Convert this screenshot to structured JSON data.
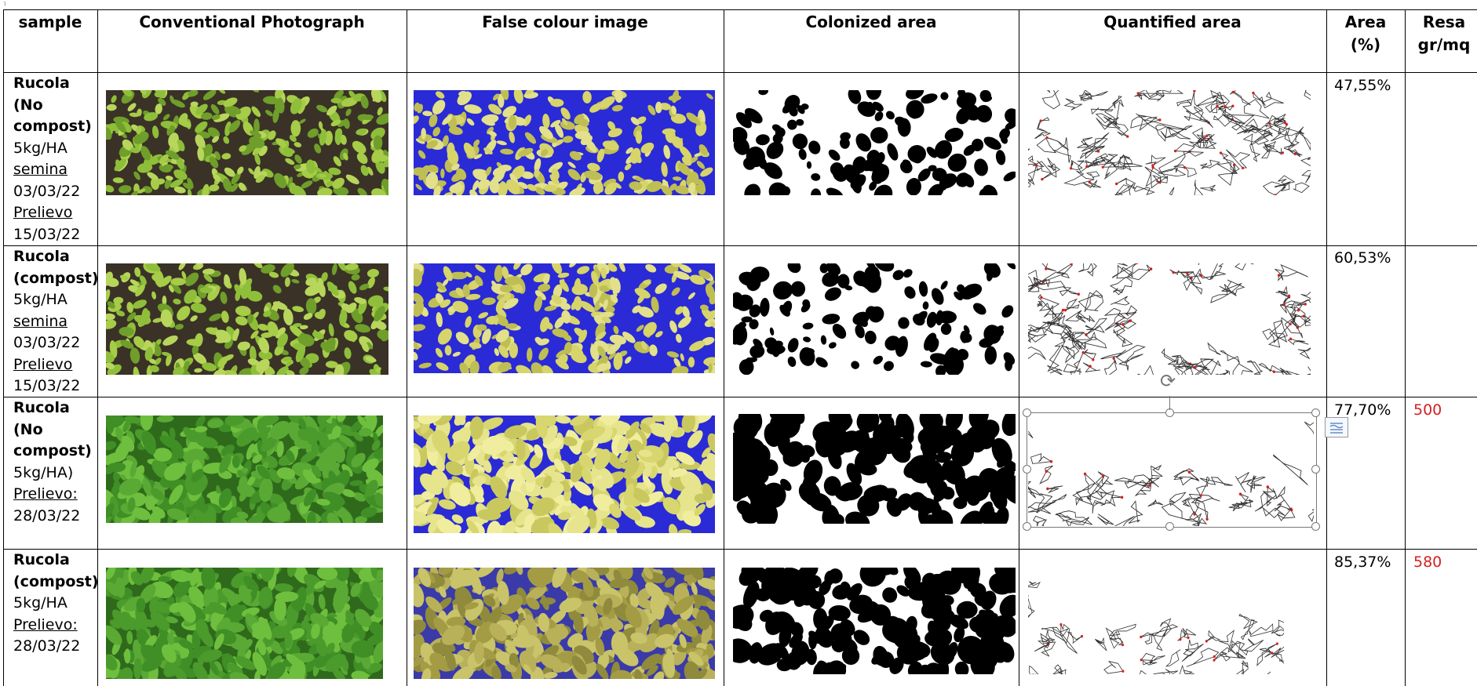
{
  "corner_mark": "¹",
  "headers": {
    "sample": "sample",
    "photo": "Conventional Photograph",
    "false_colour": "False colour image",
    "colonized": "Colonized area",
    "quantified": "Quantified area",
    "area_line1": "Area",
    "area_line2": "(%)",
    "resa_line1": "Resa",
    "resa_line2": "gr/mq"
  },
  "rows": [
    {
      "name1": "Rucola",
      "name2": "(No",
      "name3": "compost)",
      "dose": "5kg/HA",
      "semina_label": "semina",
      "semina_date": "03/03/22",
      "prelievo_label": "Prelievo",
      "prelievo_date": "15/03/22",
      "area": "47,55%",
      "resa": ""
    },
    {
      "name1": "Rucola",
      "name2": "(compost)",
      "dose": "5kg/HA",
      "semina_label": "semina",
      "semina_date": "03/03/22",
      "prelievo_label": "Prelievo",
      "prelievo_date": "15/03/22",
      "area": "60,53%",
      "resa": ""
    },
    {
      "name1": "Rucola",
      "name2": "(No",
      "name3": "compost)",
      "dose": "5kg/HA)",
      "prelievo_label": "Prelievo:",
      "prelievo_date": "28/03/22",
      "area": "77,70%",
      "resa": "500"
    },
    {
      "name1": "Rucola",
      "name2": "(compost)",
      "dose": "5kg/HA",
      "prelievo_label": "Prelievo:",
      "prelievo_date": "28/03/22",
      "area": "85,37%",
      "resa": "580"
    }
  ],
  "colors": {
    "resa_value": "#d42020",
    "false_blue": "#2a2ad6",
    "leaf_yellow": "#d9d86a",
    "leaf_green": "#6fae2a"
  },
  "icons": {
    "rotate": "rotate-handle-icon",
    "layout": "layout-options-icon"
  }
}
